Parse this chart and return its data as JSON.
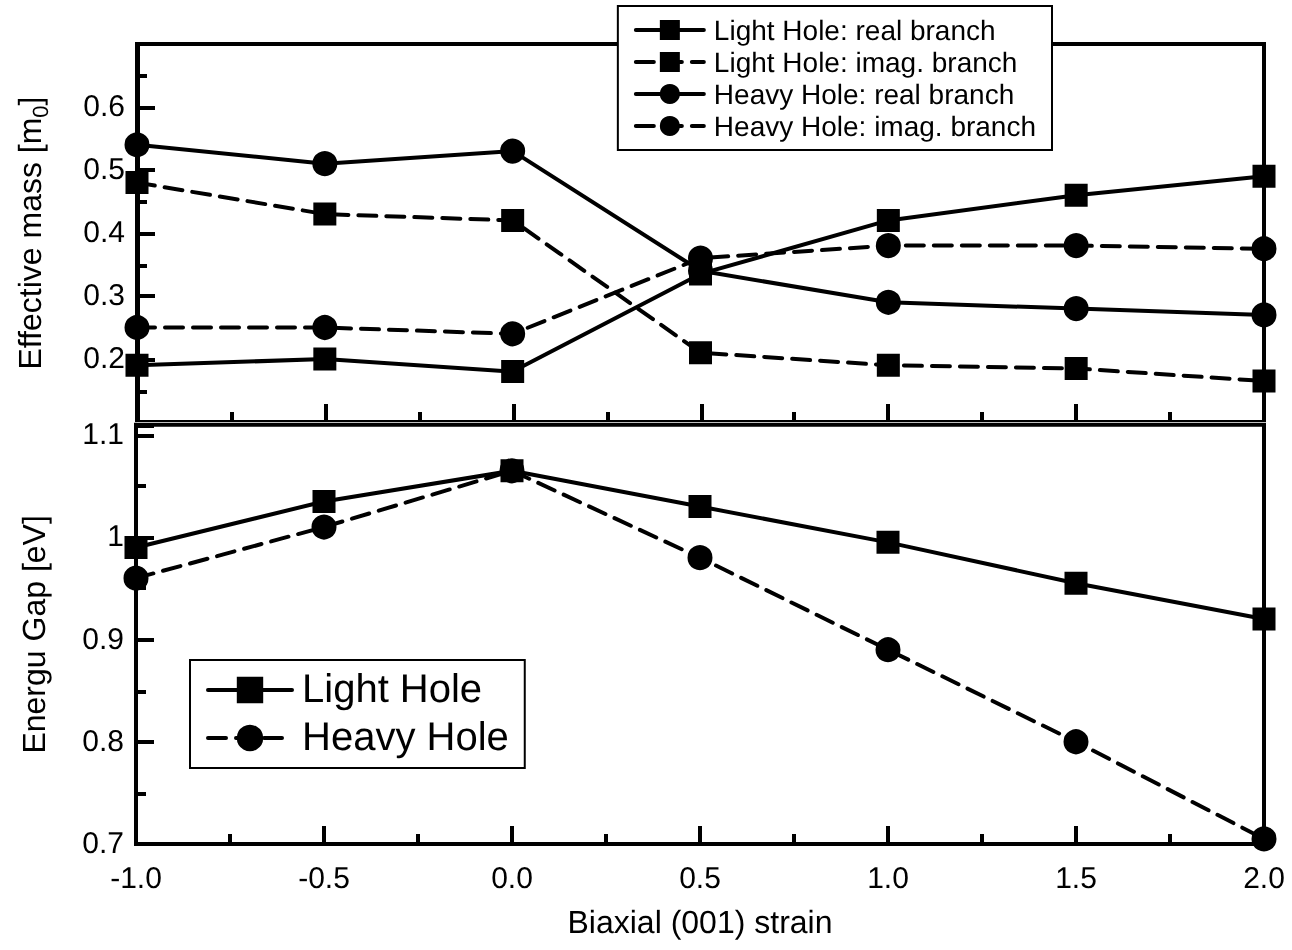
{
  "chart_data": [
    {
      "type": "line",
      "ylabel": "Effective mass [m$_{0}$]",
      "x": [
        -1,
        -0.5,
        0,
        0.5,
        1,
        1.5,
        2
      ],
      "xlim": [
        -1,
        2
      ],
      "xticks": [
        -1,
        -0.5,
        0,
        0.5,
        1,
        1.5,
        2
      ],
      "ylim": [
        0.1,
        0.7
      ],
      "yticks": [
        0.2,
        0.3,
        0.4,
        0.5,
        0.6
      ],
      "tick_labels": "y",
      "grid": false,
      "legend": "top right",
      "series": [
        {
          "name": "Light Hole: real branch",
          "color": "#000000",
          "marker": "square",
          "line_style": "solid",
          "values": [
            0.19,
            0.2,
            0.18,
            0.335,
            0.42,
            0.46,
            0.49
          ]
        },
        {
          "name": "Light Hole: imag. branch",
          "color": "#000000",
          "marker": "square",
          "line_style": "dashed",
          "values": [
            0.48,
            0.43,
            0.42,
            0.21,
            0.19,
            0.185,
            0.165
          ]
        },
        {
          "name": "Heavy Hole: real branch",
          "color": "#000000",
          "marker": "circle",
          "line_style": "solid",
          "values": [
            0.54,
            0.51,
            0.53,
            0.34,
            0.29,
            0.28,
            0.27
          ]
        },
        {
          "name": "Heavy Hole: imag. branch",
          "color": "#000000",
          "marker": "circle",
          "line_style": "dashed",
          "values": [
            0.25,
            0.25,
            0.24,
            0.36,
            0.38,
            0.38,
            0.375
          ]
        }
      ]
    },
    {
      "type": "line",
      "xlabel": "Biaxial (001) strain",
      "ylabel": "Energu Gap [eV]",
      "x": [
        -1,
        -0.5,
        0,
        0.5,
        1,
        1.5,
        2
      ],
      "xlim": [
        -1,
        2
      ],
      "xticks": [
        {
          "value": -1,
          "label": "-1.0"
        },
        {
          "value": -0.5,
          "label": "-0.5"
        },
        {
          "value": 0,
          "label": "0.0"
        },
        {
          "value": 0.5,
          "label": "0.5"
        },
        {
          "value": 1,
          "label": "1.0"
        },
        {
          "value": 1.5,
          "label": "1.5"
        },
        {
          "value": 2,
          "label": "2.0"
        }
      ],
      "ylim": [
        0.7,
        1.11
      ],
      "yticks": [
        {
          "value": 0.7,
          "label": "0.7"
        },
        {
          "value": 0.8,
          "label": "0.8"
        },
        {
          "value": 0.9,
          "label": "0.9"
        },
        {
          "value": 1,
          "label": "1"
        },
        {
          "value": 1.1,
          "label": "1.1"
        }
      ],
      "grid": false,
      "legend": "bottom left",
      "series": [
        {
          "name": "Light Hole",
          "color": "#000000",
          "marker": "square",
          "line_style": "solid",
          "values": [
            0.99,
            1.035,
            1.065,
            1.03,
            0.995,
            0.955,
            0.92
          ]
        },
        {
          "name": "Heavy Hole",
          "color": "#000000",
          "marker": "circle",
          "line_style": "dashed",
          "values": [
            0.96,
            1.01,
            1.065,
            0.98,
            0.89,
            0.8,
            0.705
          ]
        }
      ]
    }
  ]
}
